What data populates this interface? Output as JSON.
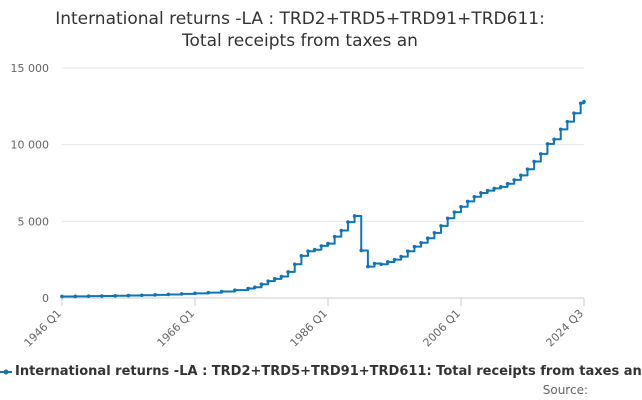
{
  "chart_data": {
    "type": "line",
    "title_line1": "International returns -LA : TRD2+TRD5+TRD91+TRD611:",
    "title_line2": "Total receipts from taxes an",
    "xlabel": "",
    "ylabel": "",
    "x_tick_labels": [
      "1946 Q1",
      "1966 Q1",
      "1986 Q1",
      "2006 Q1",
      "2024 Q3"
    ],
    "y_ticks": [
      0,
      5000,
      10000,
      15000
    ],
    "y_tick_labels": [
      "0",
      "5 000",
      "10 000",
      "15 000"
    ],
    "ylim": [
      0,
      15000
    ],
    "xlim": [
      1946,
      2024.5
    ],
    "grid": true,
    "legend_position": "bottom",
    "series": [
      {
        "name": "International returns -LA : TRD2+TRD5+TRD91+TRD611: Total receipts from taxes an",
        "color": "#0f75b6",
        "x": [
          1946,
          1948,
          1950,
          1952,
          1954,
          1956,
          1958,
          1960,
          1962,
          1964,
          1966,
          1968,
          1970,
          1972,
          1974,
          1975,
          1976,
          1977,
          1978,
          1979,
          1980,
          1981,
          1982,
          1983,
          1984,
          1985,
          1986,
          1987,
          1988,
          1989,
          1990,
          1991,
          1992,
          1993,
          1994,
          1995,
          1996,
          1997,
          1998,
          1999,
          2000,
          2001,
          2002,
          2003,
          2004,
          2005,
          2006,
          2007,
          2008,
          2009,
          2010,
          2011,
          2012,
          2013,
          2014,
          2015,
          2016,
          2017,
          2018,
          2019,
          2020,
          2021,
          2022,
          2023,
          2024,
          2024.5
        ],
        "y": [
          100,
          110,
          120,
          130,
          145,
          160,
          180,
          205,
          230,
          265,
          305,
          350,
          420,
          510,
          620,
          700,
          900,
          1100,
          1250,
          1400,
          1700,
          2200,
          2750,
          3050,
          3150,
          3400,
          3550,
          4000,
          4400,
          4950,
          5350,
          3100,
          2050,
          2250,
          2200,
          2350,
          2500,
          2700,
          3050,
          3350,
          3600,
          3900,
          4250,
          4700,
          5200,
          5600,
          5950,
          6300,
          6600,
          6850,
          7000,
          7150,
          7250,
          7450,
          7700,
          8000,
          8400,
          8900,
          9400,
          10050,
          10350,
          11000,
          11500,
          12050,
          12700,
          12800
        ]
      }
    ]
  },
  "source_label": "Source:"
}
